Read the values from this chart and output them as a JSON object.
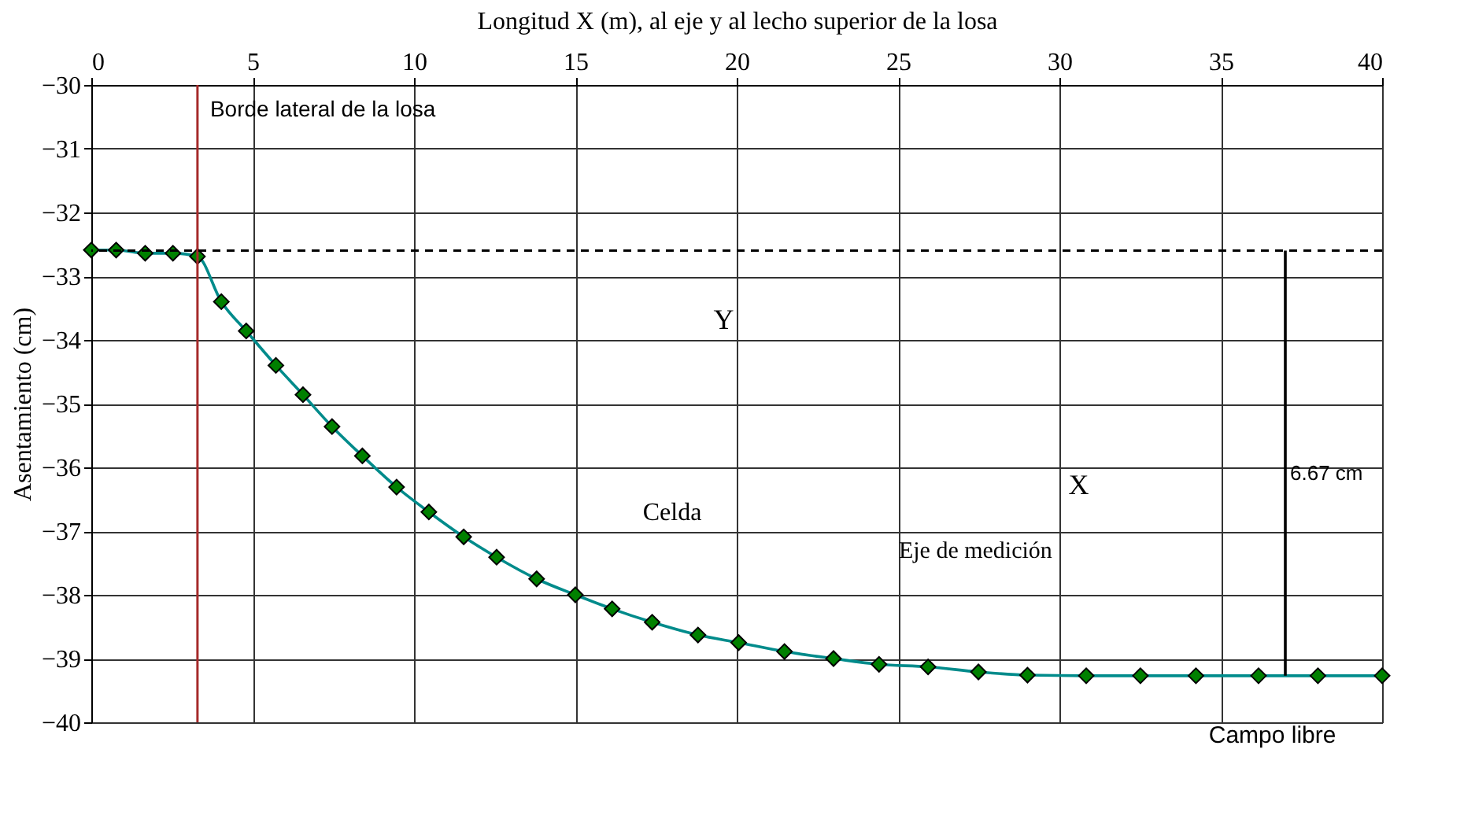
{
  "chart_data": {
    "type": "line",
    "title": null,
    "xlabel": "Longitud X (m), al eje y al lecho superior de la losa",
    "ylabel": "Asentamiento (cm)",
    "x": [
      0,
      0.77,
      1.67,
      2.53,
      3.29,
      4.03,
      4.8,
      5.72,
      6.56,
      7.46,
      8.4,
      9.46,
      10.46,
      11.54,
      12.56,
      13.8,
      15.0,
      16.14,
      17.38,
      18.8,
      20.06,
      21.48,
      23.0,
      24.41,
      25.93,
      27.49,
      29.01,
      30.83,
      32.51,
      34.23,
      36.17,
      38.01,
      40
    ],
    "series": [
      {
        "color": "#008b8b",
        "marker": "none",
        "values": [
          -32.59,
          -32.59,
          -32.64,
          -32.64,
          -32.69,
          -33.4,
          -33.86,
          -34.4,
          -34.86,
          -35.36,
          -35.82,
          -36.31,
          -36.7,
          -37.09,
          -37.41,
          -37.75,
          -38.0,
          -38.22,
          -38.43,
          -38.63,
          -38.75,
          -38.89,
          -39.0,
          -39.09,
          -39.13,
          -39.21,
          -39.26,
          -39.27,
          -39.27,
          -39.27,
          -39.27,
          -39.27,
          -39.27
        ]
      },
      {
        "type": "scatter",
        "color": "#008000",
        "marker": "diamond",
        "values": [
          -32.59,
          -32.59,
          -32.64,
          -32.64,
          -32.69,
          -33.4,
          -33.86,
          -34.4,
          -34.86,
          -35.36,
          -35.82,
          -36.31,
          -36.7,
          -37.09,
          -37.41,
          -37.75,
          -38.0,
          -38.22,
          -38.43,
          -38.63,
          -38.75,
          -38.89,
          -39.0,
          -39.09,
          -39.13,
          -39.21,
          -39.26,
          -39.27,
          -39.27,
          -39.27,
          -39.27,
          -39.27,
          -39.27
        ]
      },
      {
        "type": "line",
        "color": "#000000",
        "marker": "none",
        "x": [
          37,
          37
        ],
        "values": [
          -32.6,
          -39.27
        ]
      }
    ],
    "line_style": "solid",
    "xlim": [
      0,
      40
    ],
    "xticks": [
      0,
      5,
      10,
      15,
      20,
      25,
      30,
      35,
      40
    ],
    "ylim": [
      -40,
      -30
    ],
    "yticks": [
      -40,
      -39,
      -38,
      -37,
      -36,
      -35,
      -34,
      -33,
      -32,
      -31,
      -30
    ],
    "grid": true,
    "ref_lines": [
      {
        "axis": "x",
        "value": 3.29,
        "label": "Borde lateral de la losa",
        "color": "#a52a2a",
        "line_style": "solid"
      },
      {
        "axis": "y",
        "value": -32.6,
        "label": null,
        "color": "#000000",
        "line_style": "dashed"
      }
    ],
    "annotations": [
      "Campo libre",
      {
        "text": "6.67 cm",
        "x": 37,
        "y": -36.1
      },
      "Y",
      "X",
      "Celda",
      "Eje de medición"
    ]
  }
}
